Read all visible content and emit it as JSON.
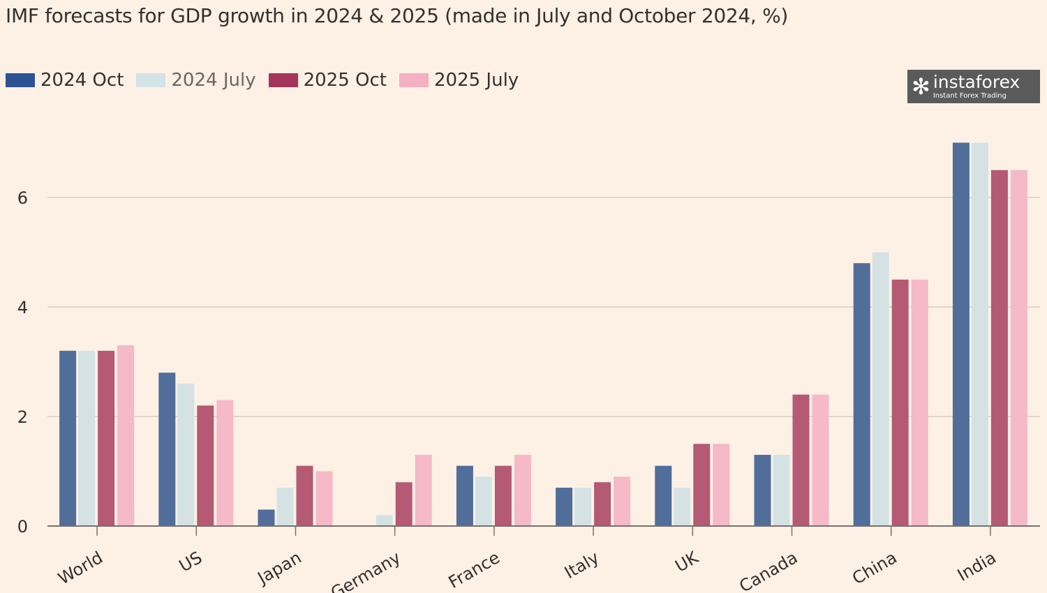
{
  "chart_data": {
    "type": "bar",
    "title": "IMF forecasts for GDP growth in 2024 & 2025 (made in July and October 2024, %)",
    "xlabel": "",
    "ylabel": "",
    "ylim": [
      0,
      7.3
    ],
    "yticks": [
      0,
      2,
      4,
      6
    ],
    "grid": true,
    "legend_position": "top-left",
    "categories": [
      "World",
      "US",
      "Japan",
      "Germany",
      "France",
      "Italy",
      "UK",
      "Canada",
      "China",
      "India"
    ],
    "series": [
      {
        "name": "2024 Oct",
        "color": "#2b5394",
        "bar_color": "#516d9a",
        "values": [
          3.2,
          2.8,
          0.3,
          0.0,
          1.1,
          0.7,
          1.1,
          1.3,
          4.8,
          7.0
        ]
      },
      {
        "name": "2024 July",
        "color": "#d3e3e6",
        "bar_color": "#d4e2e4",
        "values": [
          3.2,
          2.6,
          0.7,
          0.2,
          0.9,
          0.7,
          0.7,
          1.3,
          5.0,
          7.0
        ]
      },
      {
        "name": "2025 Oct",
        "color": "#a3365a",
        "bar_color": "#b45a74",
        "values": [
          3.2,
          2.2,
          1.1,
          0.8,
          1.1,
          0.8,
          1.5,
          2.4,
          4.5,
          6.5
        ]
      },
      {
        "name": "2025 July",
        "color": "#f4b1c3",
        "bar_color": "#f5b9c7",
        "values": [
          3.3,
          2.3,
          1.0,
          1.3,
          1.3,
          0.9,
          1.5,
          2.4,
          4.5,
          6.5
        ]
      }
    ]
  },
  "watermark": {
    "name": "instaforex",
    "tagline": "Instant Forex Trading"
  }
}
